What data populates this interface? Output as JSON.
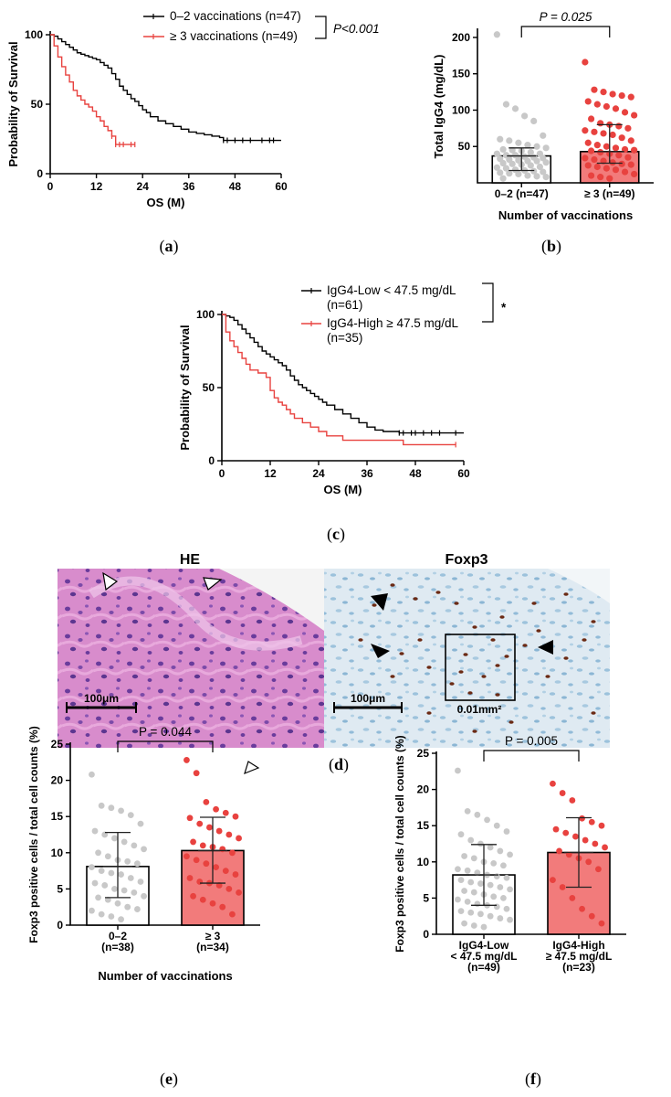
{
  "panel_labels": [
    "a",
    "b",
    "c",
    "d",
    "e",
    "f"
  ],
  "chart_data": [
    {
      "panel": "a",
      "type": "line",
      "xlabel": "OS (M)",
      "ylabel": "Probability of Survival",
      "xlim": [
        0,
        60
      ],
      "ylim": [
        0,
        100
      ],
      "xticks": [
        0,
        12,
        24,
        36,
        48,
        60
      ],
      "yticks": [
        0,
        50,
        100
      ],
      "legend_placement": "top-right",
      "pvalue": "P<0.001",
      "series": [
        {
          "name": "0–2 vaccinations (n=47)",
          "color": "#000000",
          "x": [
            0,
            1,
            2,
            3,
            4,
            5,
            6,
            7,
            8,
            9,
            10,
            11,
            12,
            13,
            14,
            15,
            16,
            17,
            18,
            19,
            20,
            21,
            22,
            23,
            24,
            25,
            26,
            28,
            30,
            32,
            34,
            36,
            38,
            40,
            42,
            44,
            45,
            48,
            50,
            52,
            55,
            58,
            60
          ],
          "y": [
            100,
            99,
            97,
            95,
            93,
            91,
            89,
            87,
            86,
            85,
            84,
            83,
            82,
            80,
            78,
            76,
            72,
            68,
            63,
            60,
            57,
            54,
            52,
            49,
            46,
            44,
            41,
            38,
            36,
            34,
            32,
            30,
            29,
            28,
            27,
            26,
            24,
            24,
            24,
            24,
            24,
            24,
            24
          ],
          "censor_x": [
            45,
            46,
            48,
            50,
            52,
            55,
            57,
            58
          ]
        },
        {
          "name": "≥ 3 vaccinations (n=49)",
          "color": "#e8423f",
          "x": [
            0,
            1,
            2,
            3,
            4,
            5,
            6,
            7,
            8,
            9,
            10,
            11,
            12,
            13,
            14,
            15,
            16,
            17,
            18,
            19,
            22
          ],
          "y": [
            100,
            92,
            84,
            77,
            71,
            66,
            60,
            56,
            53,
            50,
            48,
            45,
            41,
            38,
            34,
            31,
            27,
            21,
            21,
            21,
            21
          ],
          "censor_x": [
            16,
            17,
            18,
            19,
            21,
            22
          ]
        }
      ]
    },
    {
      "panel": "b",
      "type": "bar",
      "categories": [
        "0–2 (n=47)",
        "≥ 3 (n=49)"
      ],
      "values": [
        37,
        43
      ],
      "error": [
        [
          17,
          48
        ],
        [
          27,
          80
        ]
      ],
      "xlabel": "Number of vaccinations",
      "ylabel": "Total IgG4 (mg/dL)",
      "ylim": [
        0,
        210
      ],
      "yticks": [
        50,
        100,
        150,
        200
      ],
      "pvalue": "P = 0.025",
      "colors": [
        "#ffffff",
        "#f27b7b"
      ],
      "point_colors": [
        "#c8c8c8",
        "#e8423f"
      ],
      "points": [
        [
          204,
          108,
          102,
          92,
          85,
          65,
          60,
          58,
          55,
          52,
          50,
          48,
          46,
          45,
          44,
          42,
          40,
          40,
          38,
          38,
          36,
          35,
          34,
          33,
          32,
          31,
          30,
          30,
          28,
          27,
          26,
          25,
          24,
          22,
          21,
          20,
          18,
          17,
          16,
          15,
          14,
          13,
          12,
          10,
          9,
          8,
          6
        ],
        [
          166,
          128,
          125,
          122,
          120,
          118,
          112,
          108,
          105,
          102,
          97,
          93,
          88,
          82,
          80,
          78,
          75,
          72,
          70,
          68,
          66,
          62,
          58,
          55,
          52,
          50,
          48,
          46,
          45,
          44,
          42,
          40,
          38,
          35,
          34,
          32,
          30,
          28,
          26,
          25,
          24,
          22,
          20,
          18,
          15,
          12,
          10,
          8,
          6
        ]
      ]
    },
    {
      "panel": "c",
      "type": "line",
      "xlabel": "OS (M)",
      "ylabel": "Probability of Survival",
      "xlim": [
        0,
        60
      ],
      "ylim": [
        0,
        100
      ],
      "xticks": [
        0,
        12,
        24,
        36,
        48,
        60
      ],
      "yticks": [
        0,
        50,
        100
      ],
      "legend_placement": "top-right",
      "pvalue": "*",
      "series": [
        {
          "name": "IgG4-Low < 47.5 mg/dL",
          "n": "(n=61)",
          "color": "#000000",
          "x": [
            0,
            1,
            2,
            3,
            4,
            5,
            6,
            7,
            8,
            9,
            10,
            11,
            12,
            13,
            14,
            15,
            16,
            17,
            18,
            19,
            20,
            21,
            22,
            23,
            24,
            25,
            26,
            28,
            30,
            32,
            34,
            36,
            38,
            40,
            44,
            48,
            52,
            56,
            60
          ],
          "y": [
            100,
            99,
            98,
            96,
            93,
            90,
            87,
            84,
            81,
            78,
            75,
            73,
            71,
            69,
            67,
            65,
            62,
            58,
            55,
            52,
            50,
            48,
            46,
            44,
            42,
            40,
            38,
            35,
            32,
            29,
            26,
            23,
            21,
            20,
            19,
            19,
            19,
            19,
            19
          ],
          "censor_x": [
            44,
            45,
            47,
            48,
            50,
            52,
            54,
            58
          ]
        },
        {
          "name": "IgG4-High ≥ 47.5 mg/dL",
          "n": "(n=35)",
          "color": "#e8423f",
          "x": [
            0,
            1,
            2,
            3,
            4,
            5,
            6,
            7,
            9,
            11,
            12,
            13,
            14,
            15,
            16,
            17,
            18,
            20,
            22,
            24,
            26,
            30,
            36,
            44,
            45,
            50,
            55,
            58
          ],
          "y": [
            100,
            88,
            82,
            78,
            74,
            70,
            66,
            62,
            60,
            57,
            48,
            43,
            40,
            38,
            35,
            32,
            29,
            26,
            23,
            20,
            17,
            14,
            14,
            14,
            11,
            11,
            11,
            11
          ],
          "censor_x": [
            58
          ]
        }
      ]
    },
    {
      "panel": "e",
      "type": "bar",
      "categories": [
        "0–2\n(n=38)",
        "≥ 3\n(n=34)"
      ],
      "values": [
        8.1,
        10.3
      ],
      "error": [
        [
          3.8,
          12.8
        ],
        [
          5.8,
          14.9
        ]
      ],
      "xlabel": "Number of vaccinations",
      "ylabel": "Foxp3 positive cells / total cell counts (%)",
      "ylim": [
        0,
        25
      ],
      "yticks": [
        0,
        5,
        10,
        15,
        20,
        25
      ],
      "pvalue": "P = 0.044",
      "colors": [
        "#ffffff",
        "#f27b7b"
      ],
      "point_colors": [
        "#c8c8c8",
        "#e8423f"
      ],
      "points": [
        [
          20.8,
          16.5,
          16.2,
          15.8,
          15.2,
          14.0,
          13.0,
          12.5,
          12.0,
          11.5,
          11.0,
          10.5,
          10.0,
          9.5,
          9.0,
          8.8,
          8.5,
          8.0,
          7.5,
          7.2,
          7.0,
          6.5,
          6.0,
          5.8,
          5.5,
          5.0,
          4.8,
          4.5,
          4.0,
          3.8,
          3.5,
          3.0,
          2.5,
          2.2,
          2.0,
          1.5,
          1.2,
          0.8
        ],
        [
          22.8,
          21.0,
          17.0,
          16.0,
          15.5,
          15.0,
          14.8,
          14.0,
          13.5,
          13.0,
          12.5,
          12.0,
          11.5,
          11.0,
          10.8,
          10.5,
          10.0,
          9.5,
          9.0,
          8.5,
          8.0,
          7.5,
          7.0,
          6.5,
          6.0,
          5.8,
          5.5,
          5.0,
          4.5,
          4.0,
          3.5,
          3.0,
          2.5,
          1.5
        ]
      ]
    },
    {
      "panel": "f",
      "type": "bar",
      "categories": [
        "IgG4-Low\n< 47.5 mg/dL\n(n=49)",
        "IgG4-High\n≥ 47.5 mg/dL\n(n=23)"
      ],
      "values": [
        8.2,
        11.3
      ],
      "error": [
        [
          4.0,
          12.4
        ],
        [
          6.5,
          16.1
        ]
      ],
      "ylabel": "Foxp3 positive cells / total cell counts (%)",
      "ylim": [
        0,
        25
      ],
      "yticks": [
        0,
        5,
        10,
        15,
        20,
        25
      ],
      "pvalue": "P = 0.005",
      "colors": [
        "#ffffff",
        "#f27b7b"
      ],
      "point_colors": [
        "#c8c8c8",
        "#e8423f"
      ],
      "points": [
        [
          22.6,
          17.0,
          16.5,
          15.8,
          15.0,
          14.2,
          13.8,
          13.0,
          12.5,
          12.0,
          11.5,
          11.0,
          10.8,
          10.5,
          10.0,
          9.8,
          9.5,
          9.0,
          8.8,
          8.5,
          8.2,
          8.0,
          7.8,
          7.5,
          7.2,
          7.0,
          6.8,
          6.5,
          6.2,
          6.0,
          5.8,
          5.5,
          5.2,
          5.0,
          4.8,
          4.5,
          4.2,
          4.0,
          3.8,
          3.5,
          3.2,
          3.0,
          2.8,
          2.5,
          2.2,
          2.0,
          1.5,
          1.2,
          1.0
        ],
        [
          20.8,
          19.5,
          18.5,
          16.0,
          15.5,
          15.0,
          14.5,
          14.0,
          13.5,
          13.0,
          12.5,
          12.0,
          11.5,
          11.0,
          10.5,
          10.0,
          9.0,
          7.5,
          6.5,
          5.0,
          3.5,
          2.5,
          1.5
        ]
      ]
    }
  ],
  "micrograph": {
    "left_title": "HE",
    "right_title": "Foxp3",
    "scale_left": "100μm",
    "scale_right": "100μm",
    "area_label": "0.01mm²"
  }
}
